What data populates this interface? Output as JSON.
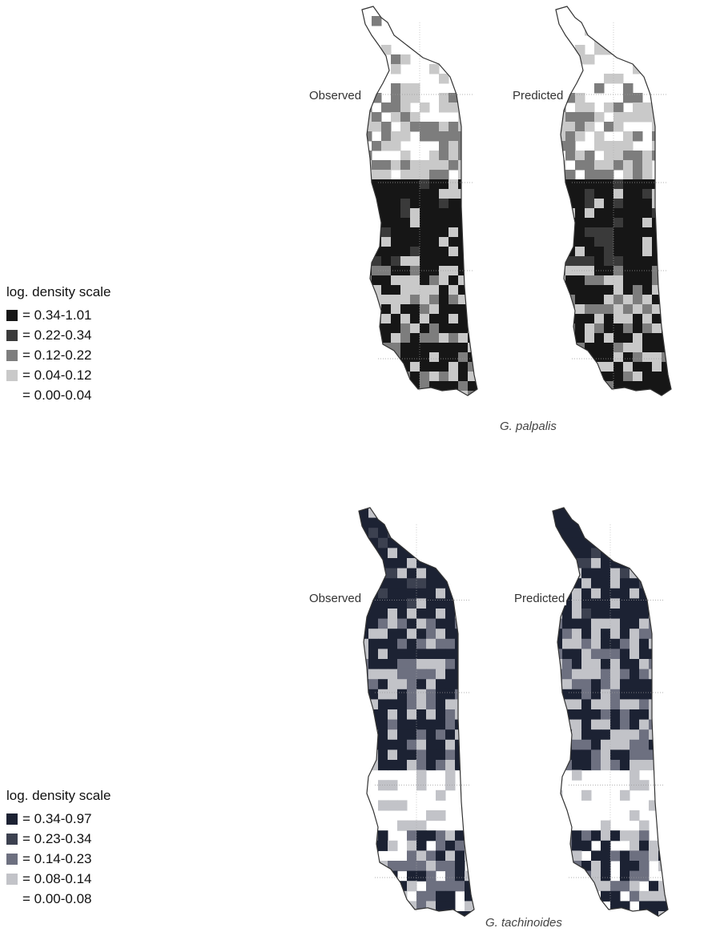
{
  "panels": [
    {
      "id": "top",
      "species": "G. palpalis",
      "observed_label": "Observed",
      "predicted_label": "Predicted",
      "legend": {
        "title": "log. density scale",
        "classes": [
          {
            "label": "= 0.34-1.01",
            "color": "#161616"
          },
          {
            "label": "= 0.22-0.34",
            "color": "#3a3a3a"
          },
          {
            "label": "= 0.12-0.22",
            "color": "#7d7d7d"
          },
          {
            "label": "= 0.04-0.12",
            "color": "#c9c9c9"
          },
          {
            "label": "= 0.00-0.04",
            "color": "#ffffff"
          }
        ]
      }
    },
    {
      "id": "bottom",
      "species": "G. tachinoides",
      "observed_label": "Observed",
      "predicted_label": "Predicted",
      "legend": {
        "title": "log. density scale",
        "classes": [
          {
            "label": "= 0.34-0.97",
            "color": "#1c2233"
          },
          {
            "label": "= 0.23-0.34",
            "color": "#3c4150"
          },
          {
            "label": "= 0.14-0.23",
            "color": "#6d7080"
          },
          {
            "label": "= 0.08-0.14",
            "color": "#c2c3c8"
          },
          {
            "label": "= 0.00-0.08",
            "color": "#ffffff"
          }
        ]
      }
    }
  ]
}
